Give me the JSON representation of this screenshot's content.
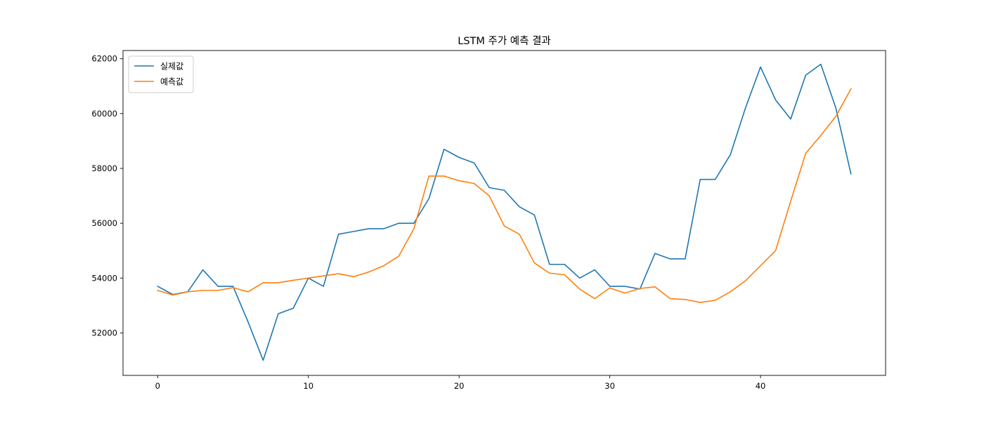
{
  "chart_data": {
    "type": "line",
    "title": "LSTM 주가 예측 결과",
    "xlabel": "",
    "ylabel": "",
    "xlim": [
      -2.3,
      48.3
    ],
    "ylim": [
      50450,
      62300
    ],
    "x_ticks": [
      0,
      10,
      20,
      30,
      40
    ],
    "y_ticks": [
      52000,
      54000,
      56000,
      58000,
      60000,
      62000
    ],
    "grid": false,
    "legend_position": "upper-left",
    "series": [
      {
        "name": "실제값",
        "color": "#1f77b4",
        "values": [
          53700,
          53400,
          53500,
          54300,
          53700,
          53700,
          52400,
          51000,
          52700,
          52900,
          54000,
          53700,
          55600,
          55700,
          55800,
          55800,
          56000,
          56000,
          56900,
          58700,
          58400,
          58200,
          57300,
          57200,
          56600,
          56300,
          54500,
          54500,
          54000,
          54300,
          53700,
          53700,
          53600,
          54900,
          54700,
          54700,
          57600,
          57600,
          58500,
          60200,
          61700,
          60500,
          59800,
          61400,
          61800,
          60200,
          57800
        ]
      },
      {
        "name": "예측값",
        "color": "#ff7f0e",
        "values": [
          53550,
          53380,
          53500,
          53550,
          53550,
          53650,
          53500,
          53830,
          53830,
          53920,
          54000,
          54080,
          54160,
          54050,
          54220,
          54450,
          54800,
          55800,
          57720,
          57720,
          57550,
          57450,
          57000,
          55900,
          55600,
          54550,
          54180,
          54120,
          53600,
          53250,
          53640,
          53450,
          53620,
          53680,
          53250,
          53220,
          53110,
          53190,
          53500,
          53900,
          54450,
          55000,
          56800,
          58550,
          59200,
          59900,
          60900
        ]
      }
    ]
  }
}
